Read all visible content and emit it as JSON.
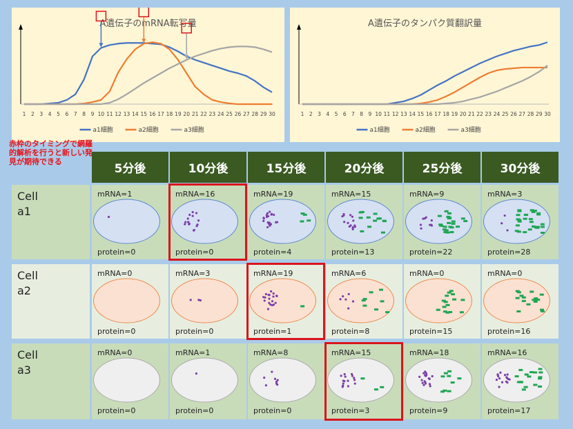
{
  "charts": [
    {
      "title": "A遺伝子のmRNA転写量",
      "type": "line",
      "x": [
        1,
        2,
        3,
        4,
        5,
        6,
        7,
        8,
        9,
        10,
        11,
        12,
        13,
        14,
        15,
        16,
        17,
        18,
        19,
        20,
        21,
        22,
        23,
        24,
        25,
        26,
        27,
        28,
        29,
        30
      ],
      "ylim": [
        0,
        100
      ],
      "series": [
        {
          "name": "a1細胞",
          "color": "#4472c4",
          "values": [
            0,
            0,
            0,
            1,
            2,
            6,
            14,
            35,
            68,
            80,
            84,
            86,
            87,
            87,
            87,
            86,
            85,
            81,
            75,
            68,
            63,
            59,
            55,
            51,
            47,
            44,
            40,
            33,
            24,
            17
          ]
        },
        {
          "name": "a2細胞",
          "color": "#ed7d31",
          "values": [
            0,
            0,
            0,
            0,
            0,
            0,
            0,
            1,
            3,
            6,
            18,
            45,
            64,
            78,
            86,
            88,
            86,
            78,
            63,
            44,
            25,
            14,
            6,
            3,
            1,
            0,
            0,
            0,
            0,
            0
          ]
        },
        {
          "name": "a3細胞",
          "color": "#a5a5a5",
          "values": [
            0,
            0,
            0,
            0,
            0,
            0,
            0,
            0,
            0,
            0,
            2,
            7,
            14,
            22,
            30,
            37,
            44,
            51,
            57,
            63,
            68,
            72,
            76,
            79,
            81,
            82,
            82,
            81,
            78,
            74
          ]
        }
      ],
      "markers": [
        {
          "x": 10,
          "series": "a1細胞"
        },
        {
          "x": 15,
          "series": "a2細胞"
        },
        {
          "x": 20,
          "series": "a3細胞"
        }
      ]
    },
    {
      "title": "A遺伝子のタンパク質翻訳量",
      "type": "line",
      "x": [
        1,
        2,
        3,
        4,
        5,
        6,
        7,
        8,
        9,
        10,
        11,
        12,
        13,
        14,
        15,
        16,
        17,
        18,
        19,
        20,
        21,
        22,
        23,
        24,
        25,
        26,
        27,
        28,
        29,
        30
      ],
      "ylim": [
        0,
        100
      ],
      "series": [
        {
          "name": "a1細胞",
          "color": "#4472c4",
          "values": [
            0,
            0,
            0,
            0,
            0,
            0,
            0,
            0,
            0,
            0,
            0,
            2,
            4,
            8,
            13,
            20,
            27,
            33,
            40,
            46,
            52,
            58,
            63,
            68,
            72,
            76,
            79,
            82,
            84,
            88
          ]
        },
        {
          "name": "a2細胞",
          "color": "#ed7d31",
          "values": [
            0,
            0,
            0,
            0,
            0,
            0,
            0,
            0,
            0,
            0,
            0,
            0,
            0,
            0,
            1,
            3,
            6,
            11,
            17,
            24,
            31,
            38,
            44,
            48,
            50,
            51,
            52,
            52,
            52,
            52
          ]
        },
        {
          "name": "a3細胞",
          "color": "#a5a5a5",
          "values": [
            0,
            0,
            0,
            0,
            0,
            0,
            0,
            0,
            0,
            0,
            0,
            0,
            0,
            0,
            0,
            0,
            0,
            1,
            2,
            4,
            7,
            10,
            14,
            18,
            23,
            28,
            33,
            39,
            46,
            55
          ]
        }
      ]
    }
  ],
  "note": "赤枠のタイミングで網羅的解析を行うと新しい発見が期待できる",
  "timepoints": [
    "5分後",
    "10分後",
    "15分後",
    "20分後",
    "25分後",
    "30分後"
  ],
  "rows": [
    {
      "label": "Cell a1",
      "cell_color": "#d6e0f3",
      "cell_stroke": "#5b88cc",
      "row_bg": "#c9dcba",
      "cells": [
        {
          "mrna_text": "mRNA=1",
          "protein_text": "protein=0",
          "mrna": 1,
          "protein": 0
        },
        {
          "mrna_text": "mRNA=16",
          "protein_text": "protein=0",
          "mrna": 16,
          "protein": 0,
          "highlight": true
        },
        {
          "mrna_text": "mRNA=19",
          "protein_text": "protein=4",
          "mrna": 19,
          "protein": 4
        },
        {
          "mrna_text": "mRNA=15",
          "protein_text": "protein=13",
          "mrna": 15,
          "protein": 13
        },
        {
          "mrna_text": "mRNA=9",
          "protein_text": "protein=22",
          "mrna": 9,
          "protein": 22
        },
        {
          "mrna_text": "mRNA=3",
          "protein_text": "protein=28",
          "mrna": 3,
          "protein": 28
        }
      ]
    },
    {
      "label": "Cell a2",
      "cell_color": "#fbe1d2",
      "cell_stroke": "#ec8a4e",
      "row_bg": "#e7eedf",
      "cells": [
        {
          "mrna_text": "mRNA=0",
          "protein_text": "protein=0",
          "mrna": 0,
          "protein": 0
        },
        {
          "mrna_text": "mRNA=3",
          "protein_text": "protein=0",
          "mrna": 3,
          "protein": 0
        },
        {
          "mrna_text": "mRNA=19",
          "protein_text": "protein=1",
          "mrna": 19,
          "protein": 1,
          "highlight": true
        },
        {
          "mrna_text": "mRNA=6",
          "protein_text": "protein=8",
          "mrna": 6,
          "protein": 8
        },
        {
          "mrna_text": "mRNA=0",
          "protein_text": "protein=15",
          "mrna": 0,
          "protein": 15
        },
        {
          "mrna_text": "mRNA=0",
          "protein_text": "protein=16",
          "mrna": 0,
          "protein": 16
        }
      ]
    },
    {
      "label": "Cell a3",
      "cell_color": "#efefef",
      "cell_stroke": "#aaaaaa",
      "row_bg": "#c9dcba",
      "cells": [
        {
          "mrna_text": "mRNA=0",
          "protein_text": "protein=0",
          "mrna": 0,
          "protein": 0
        },
        {
          "mrna_text": "mRNA=1",
          "protein_text": "protein=0",
          "mrna": 1,
          "protein": 0
        },
        {
          "mrna_text": "mRNA=8",
          "protein_text": "protein=0",
          "mrna": 8,
          "protein": 0
        },
        {
          "mrna_text": "mRNA=15",
          "protein_text": "protein=3",
          "mrna": 15,
          "protein": 3,
          "highlight": true
        },
        {
          "mrna_text": "mRNA=18",
          "protein_text": "protein=9",
          "mrna": 18,
          "protein": 9
        },
        {
          "mrna_text": "mRNA=16",
          "protein_text": "protein=17",
          "mrna": 16,
          "protein": 17
        }
      ]
    }
  ],
  "colors": {
    "mrna_dot": "#7a3fa6",
    "protein_dash": "#1fa653",
    "highlight": "#d9141c",
    "header_bg": "#3a5a22"
  }
}
